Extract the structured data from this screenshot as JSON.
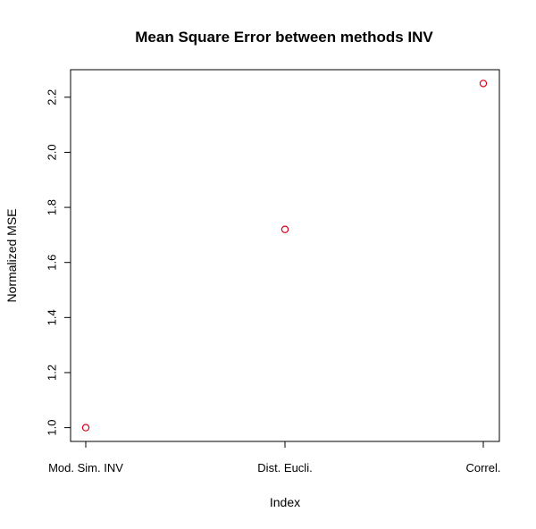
{
  "chart_data": {
    "type": "scatter",
    "title": "Mean Square Error between methods INV",
    "xlabel": "Index",
    "ylabel": "Normalized MSE",
    "categories": [
      "Mod. Sim. INV",
      "Dist. Eucli.",
      "Correl."
    ],
    "values": [
      1.0,
      1.72,
      2.25
    ],
    "yticks": [
      "1.0",
      "1.2",
      "1.4",
      "1.6",
      "1.8",
      "2.0",
      "2.2"
    ],
    "ylim": [
      0.95,
      2.3
    ],
    "grid": false,
    "marker": "open-circle",
    "point_color": "#e0001b",
    "axis_color": "#000000"
  }
}
